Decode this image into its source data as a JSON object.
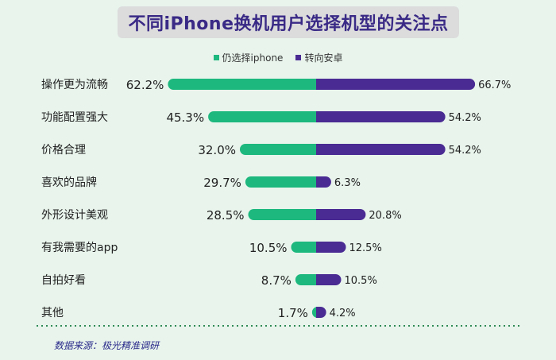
{
  "title": "不同iPhone换机用户选择机型的关注点",
  "source": "数据来源：极光精准调研",
  "colors": {
    "iphone": "#1db87e",
    "android": "#4a2b93",
    "background": "#e8f4ec"
  },
  "chart_data": {
    "type": "bar",
    "title": "不同iPhone换机用户选择机型的关注点",
    "categories": [
      "操作更为流畅",
      "功能配置强大",
      "价格合理",
      "喜欢的品牌",
      "外形设计美观",
      "有我需要的app",
      "自拍好看",
      "其他"
    ],
    "series": [
      {
        "name": "仍选择iphone",
        "values": [
          62.2,
          45.3,
          32.0,
          29.7,
          28.5,
          10.5,
          8.7,
          1.7
        ],
        "labels": [
          "62.2%",
          "45.3%",
          "32.0%",
          "29.7%",
          "28.5%",
          "10.5%",
          "8.7%",
          "1.7%"
        ]
      },
      {
        "name": "转向安卓",
        "values": [
          66.7,
          54.2,
          54.2,
          6.3,
          20.8,
          12.5,
          10.5,
          4.2
        ],
        "labels": [
          "66.7%",
          "54.2%",
          "54.2%",
          "6.3%",
          "20.8%",
          "12.5%",
          "10.5%",
          "4.2%"
        ]
      }
    ],
    "legend_position": "top-center",
    "grid": false
  }
}
